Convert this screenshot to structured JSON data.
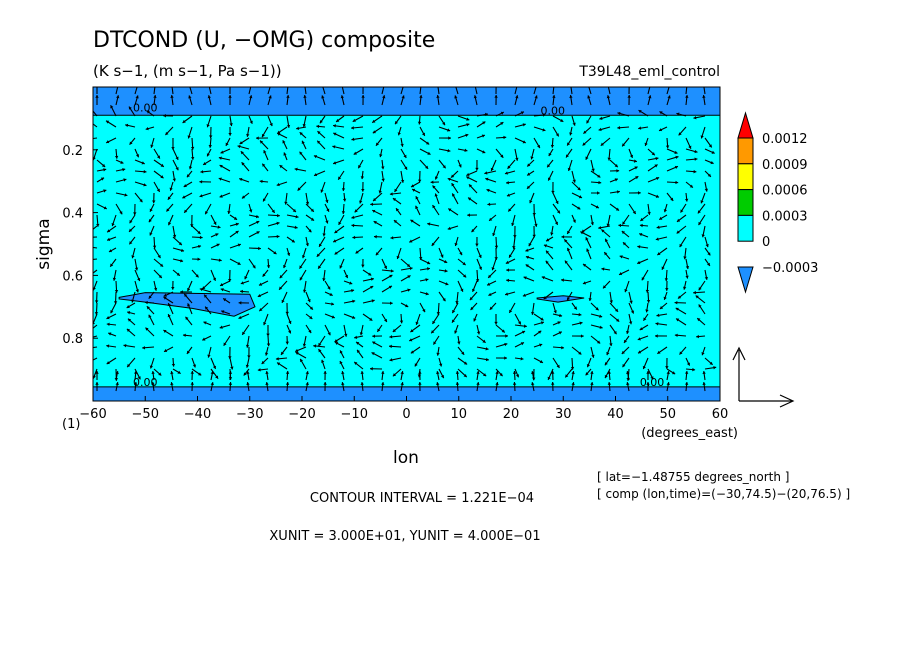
{
  "chart_data": {
    "type": "heatmap",
    "title": "DTCOND (U, −OMG) composite",
    "subtitle": "(K s−1, (m s−1, Pa s−1))",
    "run_label": "T39L48_eml_control",
    "xlabel": "lon",
    "ylabel": "sigma",
    "x_units": "(degrees_east)",
    "y_corner_label": "(1)",
    "xlim": [
      -60,
      60
    ],
    "ylim": [
      0.0,
      1.0
    ],
    "y_inverted": true,
    "x_ticks": [
      -60,
      -50,
      -40,
      -30,
      -20,
      -10,
      0,
      10,
      20,
      30,
      40,
      50,
      60
    ],
    "x_tick_labels": [
      "−60",
      "−50",
      "−40",
      "−30",
      "−20",
      "−10",
      "0",
      "10",
      "20",
      "30",
      "40",
      "50",
      "60"
    ],
    "y_ticks": [
      0.2,
      0.4,
      0.6,
      0.8
    ],
    "y_tick_labels": [
      "0.2",
      "0.4",
      "0.6",
      "0.8"
    ],
    "colorbar": {
      "levels": [
        "0.0012",
        "0.0009",
        "0.0006",
        "0.0003",
        "0",
        "−0.0003"
      ],
      "colors": [
        "#ff0000",
        "#ff9900",
        "#ffff00",
        "#00cc00",
        "#00ffff",
        "#1e90ff"
      ],
      "base_color": "#00ffff",
      "negative_color": "#1e90ff"
    },
    "negative_regions": [
      {
        "name": "top-band",
        "lon": [
          -60,
          60
        ],
        "sigma": [
          0.0,
          0.09
        ]
      },
      {
        "name": "west-blob",
        "polygon": [
          [
            -55,
            0.67
          ],
          [
            -50,
            0.655
          ],
          [
            -30,
            0.66
          ],
          [
            -29,
            0.7
          ],
          [
            -33,
            0.73
          ],
          [
            -41,
            0.705
          ],
          [
            -50,
            0.685
          ],
          [
            -55,
            0.675
          ]
        ]
      },
      {
        "name": "east-blob",
        "polygon": [
          [
            25,
            0.672
          ],
          [
            30,
            0.665
          ],
          [
            34,
            0.672
          ],
          [
            29,
            0.685
          ],
          [
            25,
            0.675
          ]
        ]
      },
      {
        "name": "bottom-band",
        "lon": [
          -60,
          60
        ],
        "sigma": [
          0.955,
          1.0
        ]
      }
    ],
    "contour_labels": [
      {
        "text": "0.00",
        "lon": -50,
        "sigma": 0.065
      },
      {
        "text": "0.00",
        "lon": 28,
        "sigma": 0.075
      },
      {
        "text": "0.00",
        "lon": -50,
        "sigma": 0.94
      },
      {
        "text": "0.00",
        "lon": 47,
        "sigma": 0.94
      }
    ],
    "vector_reference": {
      "xunit": 30,
      "yunit": 0.4
    },
    "annotations": {
      "lat": "[ lat=−1.48755 degrees_north ]",
      "comp": "[ comp (lon,time)=(−30,74.5)−(20,76.5) ]",
      "contour_interval": "CONTOUR INTERVAL = 1.221E−04",
      "units": "XUNIT = 3.000E+01, YUNIT = 4.000E−01"
    }
  }
}
